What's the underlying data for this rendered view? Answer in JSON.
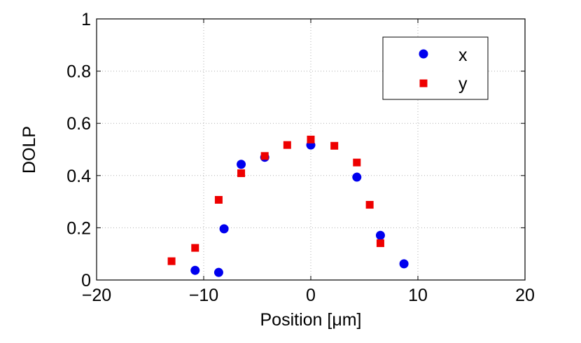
{
  "chart_data": {
    "type": "scatter",
    "xlabel": "Position [μm]",
    "ylabel": "DOLP",
    "xlim": [
      -20,
      20
    ],
    "ylim": [
      0,
      1
    ],
    "xticks": [
      -20,
      -10,
      0,
      10,
      20
    ],
    "xtick_labels": [
      "−20",
      "−10",
      "0",
      "10",
      "20"
    ],
    "yticks": [
      0,
      0.2,
      0.4,
      0.6,
      0.8,
      1
    ],
    "ytick_labels": [
      "0",
      "0.2",
      "0.4",
      "0.6",
      "0.8",
      "1"
    ],
    "grid": true,
    "legend_position": "top-right",
    "series": [
      {
        "name": "x",
        "color": "#0000ee",
        "marker": "circle",
        "points": [
          [
            -10.8,
            0.037
          ],
          [
            -8.6,
            0.029
          ],
          [
            -8.1,
            0.196
          ],
          [
            -6.5,
            0.443
          ],
          [
            -4.3,
            0.47
          ],
          [
            0.0,
            0.517
          ],
          [
            4.3,
            0.394
          ],
          [
            6.5,
            0.171
          ],
          [
            8.7,
            0.062
          ]
        ]
      },
      {
        "name": "y",
        "color": "#ee0000",
        "marker": "square",
        "points": [
          [
            -13.0,
            0.072
          ],
          [
            -10.8,
            0.123
          ],
          [
            -8.6,
            0.307
          ],
          [
            -6.5,
            0.409
          ],
          [
            -4.3,
            0.475
          ],
          [
            -2.2,
            0.517
          ],
          [
            0.0,
            0.538
          ],
          [
            2.2,
            0.514
          ],
          [
            4.3,
            0.45
          ],
          [
            5.5,
            0.288
          ],
          [
            6.5,
            0.141
          ]
        ]
      }
    ]
  }
}
